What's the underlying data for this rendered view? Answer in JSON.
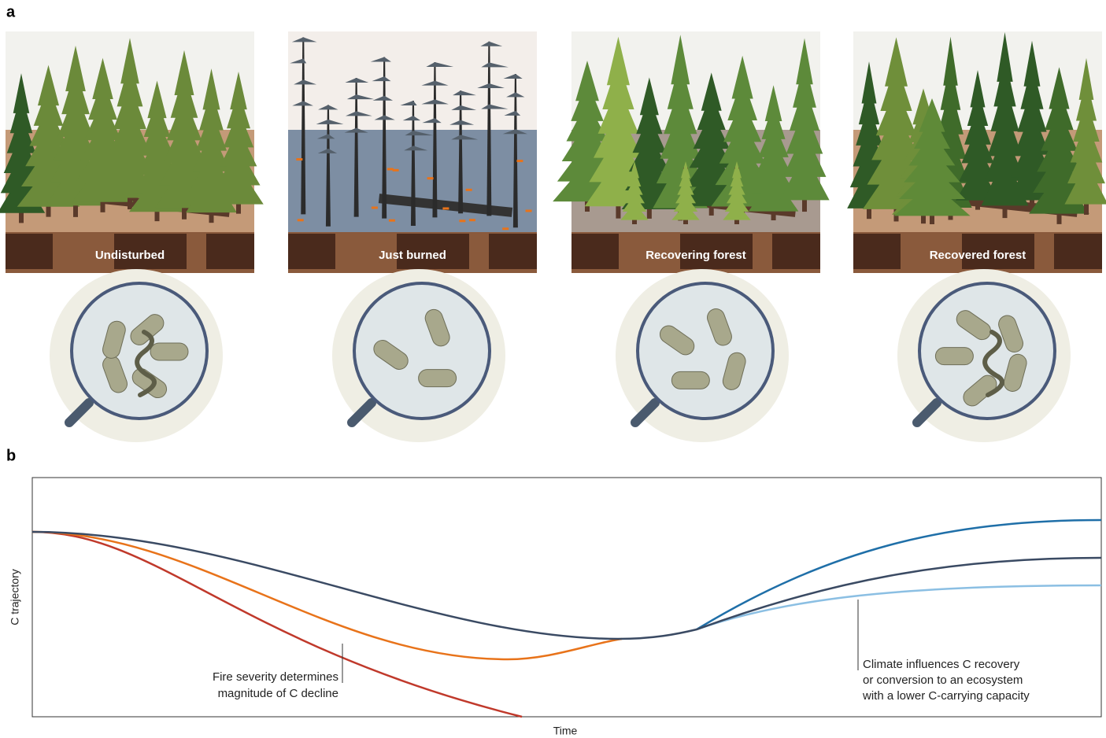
{
  "panel_a": {
    "label": "a",
    "scenes": [
      {
        "label": "Undisturbed"
      },
      {
        "label": "Just burned"
      },
      {
        "label": "Recovering forest"
      },
      {
        "label": "Recovered forest"
      }
    ]
  },
  "panel_b": {
    "label": "b",
    "y_axis_label": "C trajectory",
    "x_axis_label": "Time",
    "annotations": [
      {
        "lines": [
          "Fire severity determines",
          "magnitude of C decline"
        ]
      },
      {
        "lines": [
          "Climate influences C recovery",
          "or conversion to an ecosystem",
          "with a lower C-carrying capacity"
        ]
      }
    ]
  }
}
